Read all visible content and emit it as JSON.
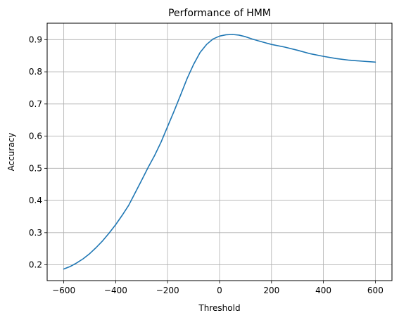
{
  "chart_data": {
    "type": "line",
    "title": "Performance of HMM",
    "xlabel": "Threshold",
    "ylabel": "Accuracy",
    "xlim": [
      -664,
      664
    ],
    "ylim": [
      0.151,
      0.951
    ],
    "grid": true,
    "xticks": [
      -600,
      -400,
      -200,
      0,
      200,
      400,
      600
    ],
    "xtick_labels": [
      "−600",
      "−400",
      "−200",
      "0",
      "200",
      "400",
      "600"
    ],
    "yticks": [
      0.2,
      0.3,
      0.4,
      0.5,
      0.6,
      0.7,
      0.8,
      0.9
    ],
    "ytick_labels": [
      "0.2",
      "0.3",
      "0.4",
      "0.5",
      "0.6",
      "0.7",
      "0.8",
      "0.9"
    ],
    "series": [
      {
        "color": "#1f77b4",
        "x": [
          -600,
          -575,
          -550,
          -525,
          -500,
          -475,
          -450,
          -425,
          -400,
          -375,
          -350,
          -325,
          -300,
          -275,
          -250,
          -225,
          -200,
          -175,
          -150,
          -125,
          -100,
          -75,
          -50,
          -25,
          0,
          25,
          50,
          75,
          100,
          125,
          150,
          200,
          250,
          300,
          350,
          400,
          450,
          500,
          550,
          600
        ],
        "y": [
          0.187,
          0.195,
          0.206,
          0.219,
          0.235,
          0.254,
          0.275,
          0.299,
          0.325,
          0.354,
          0.385,
          0.424,
          0.463,
          0.503,
          0.54,
          0.582,
          0.63,
          0.678,
          0.728,
          0.779,
          0.823,
          0.86,
          0.885,
          0.902,
          0.911,
          0.915,
          0.916,
          0.914,
          0.909,
          0.902,
          0.896,
          0.885,
          0.877,
          0.867,
          0.856,
          0.848,
          0.841,
          0.836,
          0.833,
          0.83
        ]
      }
    ]
  }
}
